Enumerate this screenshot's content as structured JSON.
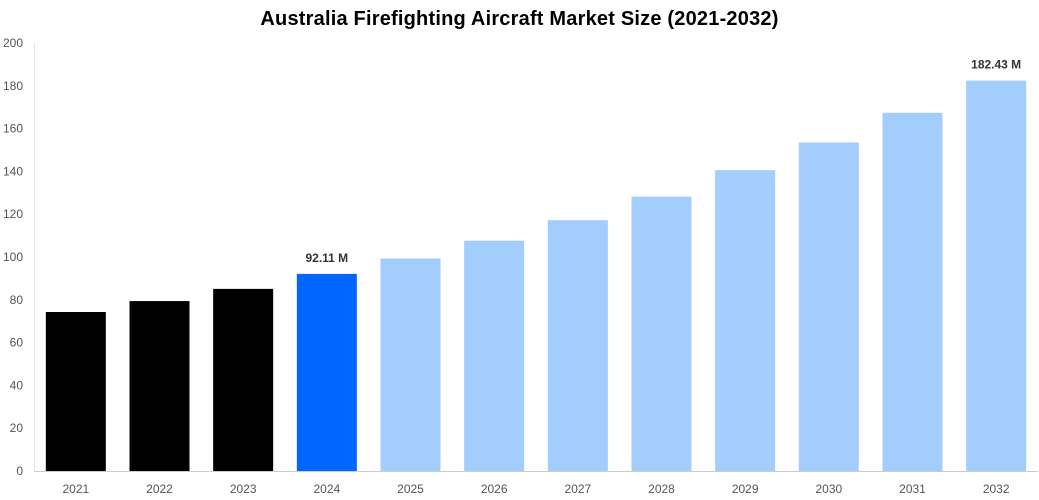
{
  "chart_data": {
    "type": "bar",
    "title": "Australia Firefighting Aircraft Market Size (2021-2032)",
    "xlabel": "",
    "ylabel": "",
    "ylim": [
      0,
      200
    ],
    "yticks": [
      0,
      20,
      40,
      60,
      80,
      100,
      120,
      140,
      160,
      180,
      200
    ],
    "categories": [
      "2021",
      "2022",
      "2023",
      "2024",
      "2025",
      "2026",
      "2027",
      "2028",
      "2029",
      "2030",
      "2031",
      "2032"
    ],
    "values": [
      74.3,
      79.4,
      85.1,
      92.11,
      99.3,
      107.6,
      117.2,
      128.2,
      140.6,
      153.5,
      167.4,
      182.43
    ],
    "bar_colors": [
      "#000000",
      "#000000",
      "#000000",
      "#0066ff",
      "#a2cdfd",
      "#a2cdfd",
      "#a2cdfd",
      "#a2cdfd",
      "#a2cdfd",
      "#a2cdfd",
      "#a2cdfd",
      "#a2cdfd"
    ],
    "data_labels": [
      {
        "index": 3,
        "text": "92.11 M"
      },
      {
        "index": 11,
        "text": "182.43 M"
      }
    ],
    "grid": false,
    "legend": "none"
  }
}
